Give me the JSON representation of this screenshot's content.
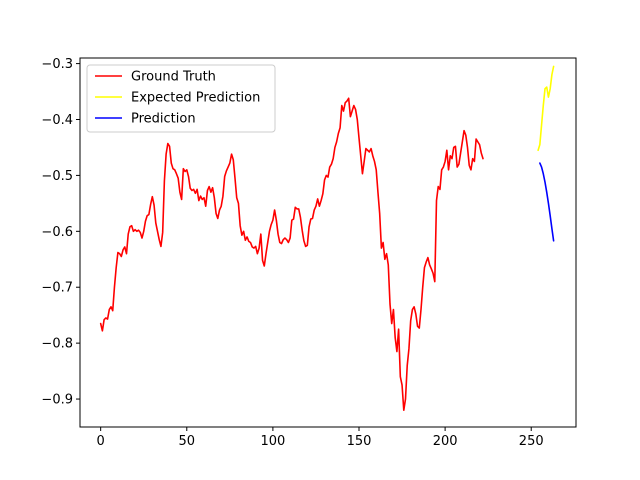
{
  "chart_data": {
    "type": "line",
    "title": "",
    "xlabel": "",
    "ylabel": "",
    "xlim": [
      -12,
      276
    ],
    "ylim": [
      -0.95,
      -0.29
    ],
    "xticks": [
      0,
      50,
      100,
      150,
      200,
      250
    ],
    "yticks": [
      -0.9,
      -0.8,
      -0.7,
      -0.6,
      -0.5,
      -0.4,
      -0.3
    ],
    "xtick_labels": [
      "0",
      "50",
      "100",
      "150",
      "200",
      "250"
    ],
    "ytick_labels": [
      "−0.9",
      "−0.8",
      "−0.7",
      "−0.6",
      "−0.5",
      "−0.4",
      "−0.3"
    ],
    "grid": false,
    "legend_position": "upper-left",
    "series": [
      {
        "name": "Ground Truth",
        "color": "#ff0000",
        "points": [
          [
            0,
            -0.765
          ],
          [
            1,
            -0.778
          ],
          [
            2,
            -0.758
          ],
          [
            3,
            -0.755
          ],
          [
            4,
            -0.757
          ],
          [
            5,
            -0.74
          ],
          [
            6,
            -0.735
          ],
          [
            7,
            -0.742
          ],
          [
            8,
            -0.7
          ],
          [
            9,
            -0.665
          ],
          [
            10,
            -0.638
          ],
          [
            11,
            -0.64
          ],
          [
            12,
            -0.645
          ],
          [
            13,
            -0.633
          ],
          [
            14,
            -0.628
          ],
          [
            15,
            -0.64
          ],
          [
            16,
            -0.605
          ],
          [
            17,
            -0.592
          ],
          [
            18,
            -0.59
          ],
          [
            19,
            -0.6
          ],
          [
            20,
            -0.597
          ],
          [
            21,
            -0.6
          ],
          [
            22,
            -0.598
          ],
          [
            23,
            -0.602
          ],
          [
            24,
            -0.612
          ],
          [
            25,
            -0.6
          ],
          [
            26,
            -0.582
          ],
          [
            27,
            -0.572
          ],
          [
            28,
            -0.57
          ],
          [
            29,
            -0.552
          ],
          [
            30,
            -0.538
          ],
          [
            31,
            -0.553
          ],
          [
            32,
            -0.585
          ],
          [
            33,
            -0.6
          ],
          [
            34,
            -0.615
          ],
          [
            35,
            -0.627
          ],
          [
            36,
            -0.602
          ],
          [
            37,
            -0.51
          ],
          [
            38,
            -0.462
          ],
          [
            39,
            -0.443
          ],
          [
            40,
            -0.448
          ],
          [
            41,
            -0.478
          ],
          [
            42,
            -0.488
          ],
          [
            43,
            -0.49
          ],
          [
            44,
            -0.497
          ],
          [
            45,
            -0.505
          ],
          [
            46,
            -0.53
          ],
          [
            47,
            -0.543
          ],
          [
            48,
            -0.488
          ],
          [
            49,
            -0.493
          ],
          [
            50,
            -0.49
          ],
          [
            51,
            -0.502
          ],
          [
            52,
            -0.523
          ],
          [
            53,
            -0.527
          ],
          [
            54,
            -0.525
          ],
          [
            55,
            -0.532
          ],
          [
            56,
            -0.525
          ],
          [
            57,
            -0.545
          ],
          [
            58,
            -0.537
          ],
          [
            59,
            -0.543
          ],
          [
            60,
            -0.54
          ],
          [
            61,
            -0.555
          ],
          [
            62,
            -0.527
          ],
          [
            63,
            -0.52
          ],
          [
            64,
            -0.53
          ],
          [
            65,
            -0.522
          ],
          [
            66,
            -0.54
          ],
          [
            67,
            -0.568
          ],
          [
            68,
            -0.577
          ],
          [
            69,
            -0.562
          ],
          [
            70,
            -0.555
          ],
          [
            71,
            -0.537
          ],
          [
            72,
            -0.502
          ],
          [
            73,
            -0.492
          ],
          [
            74,
            -0.485
          ],
          [
            75,
            -0.478
          ],
          [
            76,
            -0.462
          ],
          [
            77,
            -0.472
          ],
          [
            78,
            -0.505
          ],
          [
            79,
            -0.54
          ],
          [
            80,
            -0.55
          ],
          [
            81,
            -0.59
          ],
          [
            82,
            -0.607
          ],
          [
            83,
            -0.6
          ],
          [
            84,
            -0.616
          ],
          [
            85,
            -0.61
          ],
          [
            86,
            -0.618
          ],
          [
            87,
            -0.62
          ],
          [
            88,
            -0.628
          ],
          [
            89,
            -0.63
          ],
          [
            90,
            -0.627
          ],
          [
            91,
            -0.64
          ],
          [
            92,
            -0.63
          ],
          [
            93,
            -0.605
          ],
          [
            94,
            -0.652
          ],
          [
            95,
            -0.662
          ],
          [
            96,
            -0.64
          ],
          [
            97,
            -0.62
          ],
          [
            98,
            -0.6
          ],
          [
            99,
            -0.588
          ],
          [
            100,
            -0.58
          ],
          [
            101,
            -0.562
          ],
          [
            102,
            -0.58
          ],
          [
            103,
            -0.605
          ],
          [
            104,
            -0.62
          ],
          [
            105,
            -0.622
          ],
          [
            106,
            -0.615
          ],
          [
            107,
            -0.612
          ],
          [
            108,
            -0.615
          ],
          [
            109,
            -0.62
          ],
          [
            110,
            -0.612
          ],
          [
            111,
            -0.58
          ],
          [
            112,
            -0.578
          ],
          [
            113,
            -0.557
          ],
          [
            114,
            -0.56
          ],
          [
            115,
            -0.56
          ],
          [
            116,
            -0.575
          ],
          [
            117,
            -0.598
          ],
          [
            118,
            -0.617
          ],
          [
            119,
            -0.627
          ],
          [
            120,
            -0.625
          ],
          [
            121,
            -0.592
          ],
          [
            122,
            -0.578
          ],
          [
            123,
            -0.577
          ],
          [
            124,
            -0.562
          ],
          [
            125,
            -0.555
          ],
          [
            126,
            -0.542
          ],
          [
            127,
            -0.555
          ],
          [
            128,
            -0.545
          ],
          [
            129,
            -0.533
          ],
          [
            130,
            -0.508
          ],
          [
            131,
            -0.5
          ],
          [
            132,
            -0.503
          ],
          [
            133,
            -0.485
          ],
          [
            134,
            -0.48
          ],
          [
            135,
            -0.47
          ],
          [
            136,
            -0.45
          ],
          [
            137,
            -0.44
          ],
          [
            138,
            -0.425
          ],
          [
            139,
            -0.415
          ],
          [
            140,
            -0.375
          ],
          [
            141,
            -0.385
          ],
          [
            142,
            -0.37
          ],
          [
            143,
            -0.367
          ],
          [
            144,
            -0.362
          ],
          [
            145,
            -0.395
          ],
          [
            146,
            -0.385
          ],
          [
            147,
            -0.375
          ],
          [
            148,
            -0.382
          ],
          [
            149,
            -0.4
          ],
          [
            150,
            -0.433
          ],
          [
            151,
            -0.465
          ],
          [
            152,
            -0.497
          ],
          [
            153,
            -0.475
          ],
          [
            154,
            -0.452
          ],
          [
            155,
            -0.455
          ],
          [
            156,
            -0.458
          ],
          [
            157,
            -0.452
          ],
          [
            158,
            -0.465
          ],
          [
            159,
            -0.475
          ],
          [
            160,
            -0.49
          ],
          [
            161,
            -0.53
          ],
          [
            162,
            -0.568
          ],
          [
            163,
            -0.63
          ],
          [
            164,
            -0.62
          ],
          [
            165,
            -0.65
          ],
          [
            166,
            -0.64
          ],
          [
            167,
            -0.66
          ],
          [
            168,
            -0.73
          ],
          [
            169,
            -0.765
          ],
          [
            170,
            -0.74
          ],
          [
            171,
            -0.79
          ],
          [
            172,
            -0.815
          ],
          [
            173,
            -0.775
          ],
          [
            174,
            -0.86
          ],
          [
            175,
            -0.875
          ],
          [
            176,
            -0.92
          ],
          [
            177,
            -0.9
          ],
          [
            178,
            -0.84
          ],
          [
            179,
            -0.81
          ],
          [
            180,
            -0.76
          ],
          [
            181,
            -0.74
          ],
          [
            182,
            -0.735
          ],
          [
            183,
            -0.748
          ],
          [
            184,
            -0.77
          ],
          [
            185,
            -0.773
          ],
          [
            186,
            -0.74
          ],
          [
            187,
            -0.7
          ],
          [
            188,
            -0.665
          ],
          [
            189,
            -0.655
          ],
          [
            190,
            -0.647
          ],
          [
            191,
            -0.66
          ],
          [
            192,
            -0.667
          ],
          [
            193,
            -0.675
          ],
          [
            194,
            -0.69
          ],
          [
            195,
            -0.545
          ],
          [
            196,
            -0.52
          ],
          [
            197,
            -0.525
          ],
          [
            198,
            -0.49
          ],
          [
            199,
            -0.485
          ],
          [
            200,
            -0.475
          ],
          [
            201,
            -0.455
          ],
          [
            202,
            -0.49
          ],
          [
            203,
            -0.465
          ],
          [
            204,
            -0.47
          ],
          [
            205,
            -0.45
          ],
          [
            206,
            -0.448
          ],
          [
            207,
            -0.485
          ],
          [
            208,
            -0.48
          ],
          [
            209,
            -0.46
          ],
          [
            210,
            -0.44
          ],
          [
            211,
            -0.42
          ],
          [
            212,
            -0.428
          ],
          [
            213,
            -0.45
          ],
          [
            214,
            -0.482
          ],
          [
            215,
            -0.49
          ],
          [
            216,
            -0.47
          ],
          [
            217,
            -0.475
          ],
          [
            218,
            -0.435
          ],
          [
            219,
            -0.44
          ],
          [
            220,
            -0.445
          ],
          [
            221,
            -0.46
          ],
          [
            222,
            -0.47
          ]
        ]
      },
      {
        "name": "Expected Prediction",
        "color": "#ffff00",
        "points": [
          [
            254,
            -0.455
          ],
          [
            255,
            -0.445
          ],
          [
            256,
            -0.41
          ],
          [
            257,
            -0.375
          ],
          [
            258,
            -0.345
          ],
          [
            259,
            -0.342
          ],
          [
            260,
            -0.36
          ],
          [
            261,
            -0.345
          ],
          [
            262,
            -0.32
          ],
          [
            263,
            -0.305
          ]
        ]
      },
      {
        "name": "Prediction",
        "color": "#0000ff",
        "points": [
          [
            255,
            -0.478
          ],
          [
            256,
            -0.485
          ],
          [
            257,
            -0.497
          ],
          [
            258,
            -0.512
          ],
          [
            259,
            -0.53
          ],
          [
            260,
            -0.55
          ],
          [
            261,
            -0.572
          ],
          [
            262,
            -0.595
          ],
          [
            263,
            -0.617
          ]
        ]
      }
    ]
  }
}
